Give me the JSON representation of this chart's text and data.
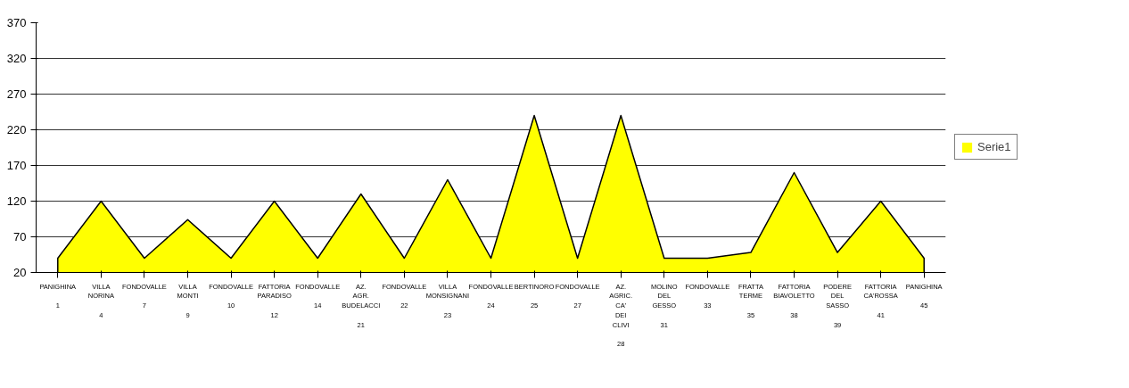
{
  "chart_data": {
    "type": "area",
    "categories": [
      "PANIGHINA\n1",
      "VILLA NORINA\n4",
      "FONDOVALLE\n7",
      "VILLA MONTI\n9",
      "FONDOVALLE\n10",
      "FATTORIA PARADISO\n12",
      "FONDOVALLE\n14",
      "AZ. AGR. BUDELACCI\n21",
      "FONDOVALLE\n22",
      "VILLA MONSIGNANI\n23",
      "FONDOVALLE\n24",
      "BERTINORO\n25",
      "FONDOVALLE\n27",
      "AZ. AGRIC. CA' DEI CLIVI\n28",
      "MOLINO DEL GESSO\n31",
      "FONDOVALLE\n33",
      "FRATTA TERME\n35",
      "FATTORIA BIAVOLETTO\n38",
      "PODERE DEL SASSO\n39",
      "FATTORIA CA'ROSSA\n41",
      "PANIGHINA\n45"
    ],
    "series": [
      {
        "name": "Serie1",
        "color": "#ffff00",
        "values": [
          40,
          120,
          40,
          94,
          40,
          120,
          40,
          130,
          40,
          150,
          40,
          240,
          40,
          240,
          40,
          40,
          48,
          160,
          48,
          120,
          40
        ]
      }
    ],
    "ylim": [
      20,
      370
    ],
    "yticks": [
      20,
      70,
      120,
      170,
      220,
      270,
      320,
      370
    ],
    "grid": "y",
    "legend": "right"
  }
}
